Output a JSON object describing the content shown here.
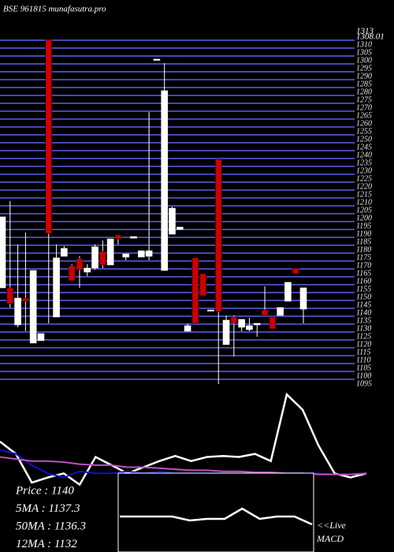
{
  "chart_data": [
    {
      "type": "candlestick",
      "title": "BSE 961815 munafasutra.pro",
      "top_labels": [
        "1313",
        "1308.01"
      ],
      "up_color": "#ffffff",
      "down_color": "#cc0000",
      "grid_color": "#4646b4",
      "ylim": [
        1092,
        1313
      ],
      "yticks": [
        1095,
        1100,
        1105,
        1110,
        1115,
        1120,
        1125,
        1130,
        1135,
        1140,
        1145,
        1150,
        1155,
        1160,
        1165,
        1170,
        1175,
        1180,
        1185,
        1190,
        1195,
        1200,
        1205,
        1210,
        1215,
        1220,
        1225,
        1230,
        1235,
        1240,
        1245,
        1250,
        1255,
        1260,
        1265,
        1270,
        1275,
        1280,
        1285,
        1290,
        1295,
        1300,
        1305,
        1310
      ],
      "grid": true,
      "open": [
        1153,
        1153,
        1129.5,
        1146.5,
        1118,
        1119.5,
        1310.5,
        1134.5,
        1173,
        1167,
        1171.5,
        1163,
        1165.5,
        1176,
        1167.5,
        1186.5,
        1172.5,
        1184.5,
        1172.5,
        1173,
        1298,
        1164,
        1187,
        1190,
        1125.5,
        1172,
        1162,
        1139,
        1234.5,
        1117,
        1134.5,
        1128,
        1126.5,
        1129.5,
        1139,
        1134.5,
        1135.5,
        1144.5,
        1165.5,
        1139.5
      ],
      "high": [
        1198,
        1208,
        1180.5,
        1188,
        1164,
        1124,
        1310.5,
        1180.5,
        1179.5,
        1168,
        1173,
        1168,
        1180.5,
        1183,
        1184,
        1186.5,
        1174.5,
        1185.5,
        1176.5,
        1264.5,
        1298,
        1295.5,
        1204.5,
        1191.5,
        1130.5,
        1172,
        1162,
        1139,
        1234.5,
        1135.5,
        1135.5,
        1133,
        1134,
        1130.5,
        1154,
        1134.5,
        1140.5,
        1156.5,
        1165.5,
        1153
      ],
      "low": [
        1153,
        1140.5,
        1128,
        1125.5,
        1118,
        1119.5,
        1130.5,
        1134.5,
        1173,
        1157.5,
        1153,
        1160.5,
        1164.5,
        1165.5,
        1167.5,
        1180.5,
        1170.5,
        1184.5,
        1172.5,
        1170.5,
        1298,
        1164,
        1187,
        1190,
        1125.5,
        1130.5,
        1148,
        1139,
        1092,
        1117,
        1109.5,
        1125.5,
        1125.5,
        1122,
        1135.5,
        1127,
        1135.5,
        1144.5,
        1162,
        1130.5
      ],
      "close": [
        1198,
        1143,
        1146.5,
        1144.5,
        1164,
        1124,
        1187.5,
        1172,
        1178,
        1157.5,
        1164.5,
        1165.5,
        1179,
        1167.5,
        1184,
        1184,
        1174.5,
        1185.5,
        1176.5,
        1176.5,
        1298,
        1278,
        1203.5,
        1191.5,
        1129,
        1130.5,
        1148,
        1139,
        1138,
        1132.5,
        1130.5,
        1133,
        1129,
        1130.5,
        1135.5,
        1127,
        1140.5,
        1156.5,
        1162,
        1153
      ]
    },
    {
      "type": "line",
      "ylim": [
        0,
        100
      ],
      "series": [
        {
          "color": "#ffffff",
          "values": [
            50,
            38,
            10,
            15,
            19,
            8,
            35,
            27,
            19,
            25,
            31,
            36,
            31,
            35,
            36,
            35,
            38,
            31,
            96,
            81,
            46,
            19,
            15,
            19
          ]
        },
        {
          "color": "#1010c8",
          "values": [
            42,
            38,
            27,
            19,
            15,
            21,
            19,
            19,
            21,
            19,
            21,
            19,
            19,
            19,
            19,
            19,
            19,
            19,
            19,
            19,
            19,
            18,
            18,
            19
          ]
        },
        {
          "color": "#c050c0",
          "values": [
            35,
            33,
            31,
            31,
            30,
            28,
            27,
            27,
            25,
            25,
            24,
            23,
            22,
            22,
            21,
            21,
            20,
            20,
            19,
            19,
            18,
            18,
            18,
            19
          ]
        }
      ],
      "info": [
        "Price  : 1140",
        "5MA : 1137.3",
        "50MA : 1136.3",
        "12MA : 1132"
      ]
    },
    {
      "type": "line",
      "title": "<<Live",
      "subtitle": "MACD",
      "ylim": [
        0,
        100
      ],
      "series": [
        {
          "color": "#ffffff",
          "values": [
            45,
            45,
            45,
            45,
            40,
            42,
            42,
            55,
            42,
            45,
            45,
            35
          ]
        }
      ]
    }
  ]
}
